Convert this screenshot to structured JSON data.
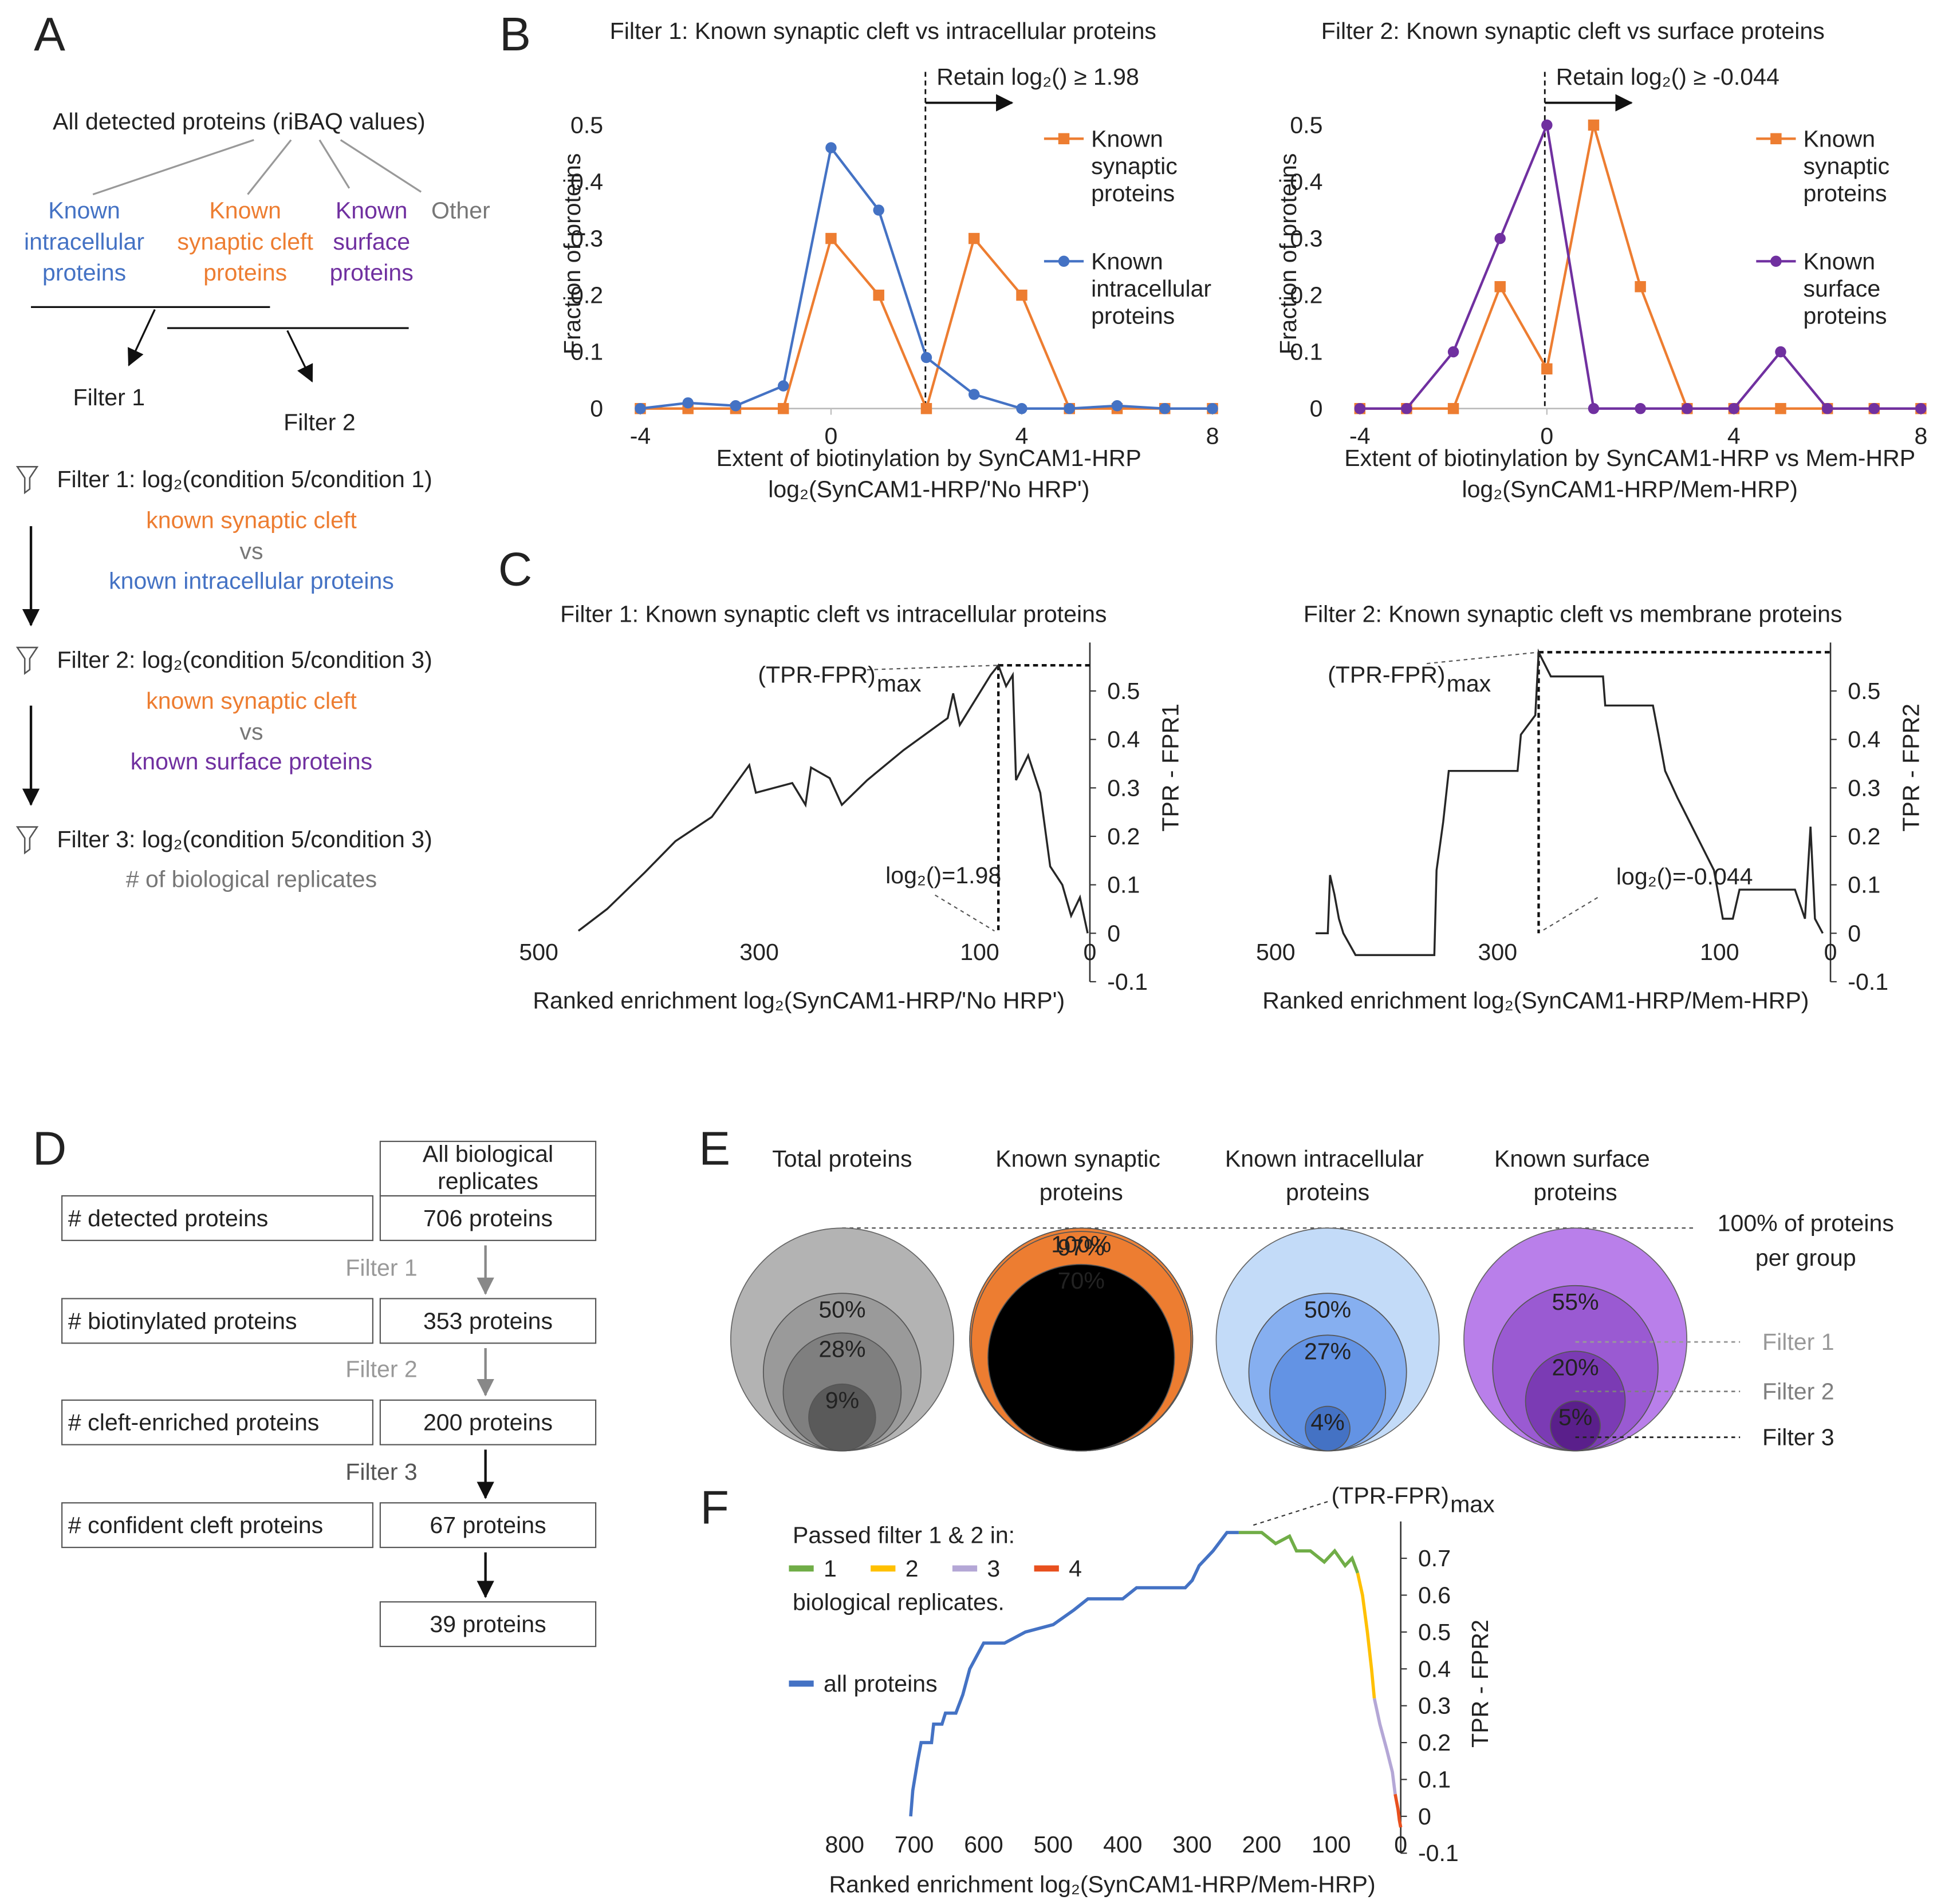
{
  "panel_labels": [
    "A",
    "B",
    "C",
    "D",
    "E",
    "F"
  ],
  "panel_a": {
    "root": "All detected proteins (riBAQ values)",
    "groups": [
      {
        "lines": [
          "Known",
          "intracellular",
          "proteins"
        ]
      },
      {
        "lines": [
          "Known",
          "synaptic cleft",
          "proteins"
        ]
      },
      {
        "lines": [
          "Known",
          "surface",
          "proteins"
        ]
      },
      {
        "lines": [
          "Other"
        ]
      }
    ],
    "branches": [
      "Filter 1",
      "Filter 2"
    ],
    "steps": [
      {
        "title": "Filter 1: log₂(condition 5/condition 1)",
        "lines": [
          "known synaptic cleft",
          "vs",
          "known intracellular proteins"
        ]
      },
      {
        "title": "Filter 2: log₂(condition 5/condition 3)",
        "lines": [
          "known synaptic cleft",
          "vs",
          "known surface proteins"
        ]
      },
      {
        "title": "Filter 3: log₂(condition 5/condition 3)",
        "lines": [
          "# of biological replicates"
        ]
      }
    ]
  },
  "panel_d": {
    "header": [
      "All biological",
      "replicates"
    ],
    "rows": [
      {
        "label": "# detected proteins",
        "value": "706 proteins"
      },
      {
        "label": "# biotinylated proteins",
        "value": "353 proteins"
      },
      {
        "label": "# cleft-enriched proteins",
        "value": "200 proteins"
      },
      {
        "label": "# confident cleft proteins",
        "value": "67 proteins"
      }
    ],
    "filters": [
      "Filter 1",
      "Filter 2",
      "Filter 3"
    ],
    "final": "39 proteins"
  },
  "chart_data": [
    {
      "type": "line",
      "title": "Filter 1: Known synaptic cleft vs intracellular proteins",
      "xlabel": [
        "Extent of biotinylation  by SynCAM1-HRP",
        "log₂(SynCAM1-HRP/'No HRP')"
      ],
      "ylabel": "Fraction of proteins",
      "x": [
        -4,
        -3,
        -2,
        -1,
        0,
        1,
        2,
        3,
        4,
        5,
        6,
        7,
        8
      ],
      "xlim": [
        -4,
        8
      ],
      "xticks": [
        -4,
        0,
        4,
        8
      ],
      "ylim": [
        0,
        0.5
      ],
      "yticks": [
        0,
        0.1,
        0.2,
        0.3,
        0.4,
        0.5
      ],
      "yaxis": "left",
      "threshold": 1.98,
      "threshold_label": "Retain log₂() ≥ 1.98",
      "series": [
        {
          "name": "Known synaptic proteins",
          "color": "#ed7d31",
          "marker": "square",
          "values": [
            0,
            0,
            0,
            0,
            0.3,
            0.2,
            0,
            0.3,
            0.2,
            0,
            0,
            0,
            0
          ]
        },
        {
          "name": "Known intracellular proteins",
          "color": "#4472c4",
          "marker": "circle",
          "values": [
            0,
            0.01,
            0.005,
            0.04,
            0.46,
            0.35,
            0.09,
            0.025,
            0,
            0,
            0.005,
            0,
            0
          ]
        }
      ]
    },
    {
      "type": "line",
      "title": "Filter 2: Known synaptic cleft vs surface proteins",
      "xlabel": [
        "Extent of biotinylation  by SynCAM1-HRP vs Mem-HRP",
        "log₂(SynCAM1-HRP/Mem-HRP)"
      ],
      "ylabel": "Fraction of proteins",
      "x": [
        -4,
        -3,
        -2,
        -1,
        0,
        1,
        2,
        3,
        4,
        5,
        6,
        7,
        8
      ],
      "xlim": [
        -4,
        8
      ],
      "xticks": [
        -4,
        0,
        4,
        8
      ],
      "ylim": [
        0,
        0.5
      ],
      "yticks": [
        0,
        0.1,
        0.2,
        0.3,
        0.4,
        0.5
      ],
      "yaxis": "left",
      "threshold": -0.044,
      "threshold_label": "Retain log₂() ≥ -0.044",
      "series": [
        {
          "name": "Known synaptic proteins",
          "color": "#ed7d31",
          "marker": "square",
          "values": [
            0,
            0,
            0,
            0.215,
            0.07,
            0.5,
            0.215,
            0,
            0,
            0,
            0,
            0,
            0
          ]
        },
        {
          "name": "Known surface proteins",
          "color": "#7030a0",
          "marker": "circle",
          "values": [
            0,
            0,
            0.1,
            0.3,
            0.5,
            0,
            0,
            0,
            0,
            0.1,
            0,
            0,
            0
          ]
        }
      ]
    },
    {
      "type": "line",
      "title": "Filter 1: Known synaptic cleft vs intracellular proteins",
      "xlabel": [
        "Ranked enrichment log₂(SynCAM1-HRP/'No HRP')"
      ],
      "ylabel": "TPR - FPR1",
      "xlim": [
        500,
        0
      ],
      "xticks": [
        500,
        300,
        100,
        0
      ],
      "ylim": [
        -0.1,
        0.6
      ],
      "yticks": [
        -0.1,
        0,
        0.1,
        0.2,
        0.3,
        0.4,
        0.5
      ],
      "yaxis": "right",
      "max_point": {
        "x": 83,
        "y": 0.553
      },
      "max_label": "(TPR-FPR)",
      "max_label_sub": "max",
      "threshold_label": "log₂()=1.98",
      "series": [
        {
          "color": "#262626",
          "x": [
            464,
            438,
            404,
            376,
            343,
            309,
            303,
            270,
            258,
            253,
            236,
            225,
            202,
            169,
            129,
            124,
            118,
            90,
            83,
            76,
            70,
            67,
            56,
            45,
            36,
            25,
            17,
            9,
            2
          ],
          "values": [
            0.005,
            0.05,
            0.125,
            0.19,
            0.24,
            0.347,
            0.29,
            0.31,
            0.265,
            0.342,
            0.32,
            0.265,
            0.316,
            0.378,
            0.444,
            0.495,
            0.43,
            0.533,
            0.553,
            0.51,
            0.533,
            0.316,
            0.367,
            0.29,
            0.138,
            0.1,
            0.036,
            0.074,
            0
          ]
        }
      ]
    },
    {
      "type": "line",
      "title": "Filter 2: Known synaptic cleft vs membrane proteins",
      "xlabel": [
        "Ranked enrichment log₂(SynCAM1-HRP/Mem-HRP)"
      ],
      "ylabel": "TPR - FPR2",
      "xlim": [
        500,
        0
      ],
      "xticks": [
        500,
        300,
        100,
        0
      ],
      "ylim": [
        -0.1,
        0.6
      ],
      "yticks": [
        -0.1,
        0,
        0.1,
        0.2,
        0.3,
        0.4,
        0.5
      ],
      "yaxis": "right",
      "max_point": {
        "x": 263,
        "y": 0.58
      },
      "max_label": "(TPR-FPR)",
      "max_label_sub": "max",
      "threshold_label": "log₂()=-0.044",
      "series": [
        {
          "color": "#262626",
          "x": [
            464,
            453,
            451,
            447,
            443,
            439,
            428,
            357,
            355,
            349,
            344,
            282,
            279,
            266,
            263,
            252,
            205,
            203,
            160,
            155,
            149,
            138,
            127,
            116,
            105,
            97,
            88,
            82,
            32,
            23,
            18,
            14,
            7
          ],
          "values": [
            0,
            0,
            0.12,
            0.08,
            0.03,
            0,
            -0.045,
            -0.045,
            0.13,
            0.23,
            0.335,
            0.335,
            0.41,
            0.45,
            0.58,
            0.53,
            0.53,
            0.47,
            0.47,
            0.41,
            0.335,
            0.28,
            0.23,
            0.18,
            0.13,
            0.03,
            0.03,
            0.09,
            0.09,
            0.03,
            0.22,
            0.03,
            0
          ]
        }
      ]
    },
    {
      "type": "circles",
      "reference_value": 100,
      "reference_label": [
        "100% of proteins",
        "per group"
      ],
      "level_labels": [
        "Filter 1",
        "Filter 2",
        "Filter 3"
      ],
      "level_colors": [
        "#999999",
        "#7f7f7f",
        "#222222"
      ],
      "series": [
        {
          "name": "Total proteins",
          "colors": [
            "#b3b3b3",
            "#9a9a9a",
            "#7f7f7f",
            "#5a5a5a"
          ],
          "values": [
            50,
            28,
            9
          ],
          "value_labels": [
            "50%",
            "28%",
            "9%"
          ]
        },
        {
          "name": "Known synaptic proteins",
          "colors": [
            "#f79b55",
            "#ee8238",
            "#ed7d31"
          ],
          "values": [
            100,
            97,
            70
          ],
          "value_labels": [
            "100%",
            "97%",
            "70%"
          ]
        },
        {
          "name": "Known intracellular proteins",
          "colors": [
            "#c3dbf8",
            "#86aff0",
            "#6393e4",
            "#4472c4"
          ],
          "values": [
            50,
            27,
            4
          ],
          "value_labels": [
            "50%",
            "27%",
            "4%"
          ]
        },
        {
          "name": "Known surface proteins",
          "colors": [
            "#b97fea",
            "#9a5ad2",
            "#7b3bb4",
            "#5a1f8b"
          ],
          "values": [
            55,
            20,
            5
          ],
          "value_labels": [
            "55%",
            "20%",
            "5%"
          ]
        }
      ]
    },
    {
      "type": "line",
      "xlabel": [
        "Ranked enrichment log₂(SynCAM1-HRP/Mem-HRP)"
      ],
      "ylabel": "TPR - FPR2",
      "xlim": [
        800,
        0
      ],
      "xticks": [
        800,
        700,
        600,
        500,
        400,
        300,
        200,
        100,
        0
      ],
      "ylim": [
        -0.1,
        0.8
      ],
      "yticks": [
        -0.1,
        0,
        0.1,
        0.2,
        0.3,
        0.4,
        0.5,
        0.6,
        0.7
      ],
      "yaxis": "right",
      "max_label": "(TPR-FPR)",
      "max_label_sub": "max",
      "legend_title": "Passed filter 1 & 2 in:",
      "legend_footer": "biological replicates.",
      "series": [
        {
          "name": "all proteins",
          "color": "#4472c4",
          "x": [
            705,
            702,
            695,
            690,
            675,
            672,
            660,
            655,
            640,
            630,
            620,
            600,
            570,
            540,
            500,
            470,
            450,
            400,
            380,
            310,
            300,
            290,
            270,
            250,
            233
          ],
          "values": [
            0,
            0.07,
            0.15,
            0.2,
            0.2,
            0.25,
            0.25,
            0.28,
            0.28,
            0.33,
            0.4,
            0.47,
            0.47,
            0.5,
            0.52,
            0.56,
            0.59,
            0.59,
            0.62,
            0.62,
            0.64,
            0.68,
            0.72,
            0.77,
            0.77
          ]
        },
        {
          "name": "1",
          "color": "#70ad47",
          "x": [
            233,
            200,
            180,
            160,
            150,
            130,
            110,
            95,
            80,
            70,
            62
          ],
          "values": [
            0.77,
            0.77,
            0.74,
            0.76,
            0.72,
            0.72,
            0.69,
            0.72,
            0.68,
            0.7,
            0.66
          ]
        },
        {
          "name": "2",
          "color": "#ffc000",
          "x": [
            62,
            55,
            48,
            42,
            38
          ],
          "values": [
            0.66,
            0.6,
            0.5,
            0.4,
            0.32
          ]
        },
        {
          "name": "3",
          "color": "#b4a7d6",
          "x": [
            38,
            30,
            20,
            12,
            8
          ],
          "values": [
            0.32,
            0.25,
            0.18,
            0.12,
            0.06
          ]
        },
        {
          "name": "4",
          "color": "#e8501e",
          "x": [
            8,
            4,
            2,
            0
          ],
          "values": [
            0.06,
            0.02,
            -0.01,
            -0.03
          ]
        }
      ]
    }
  ]
}
